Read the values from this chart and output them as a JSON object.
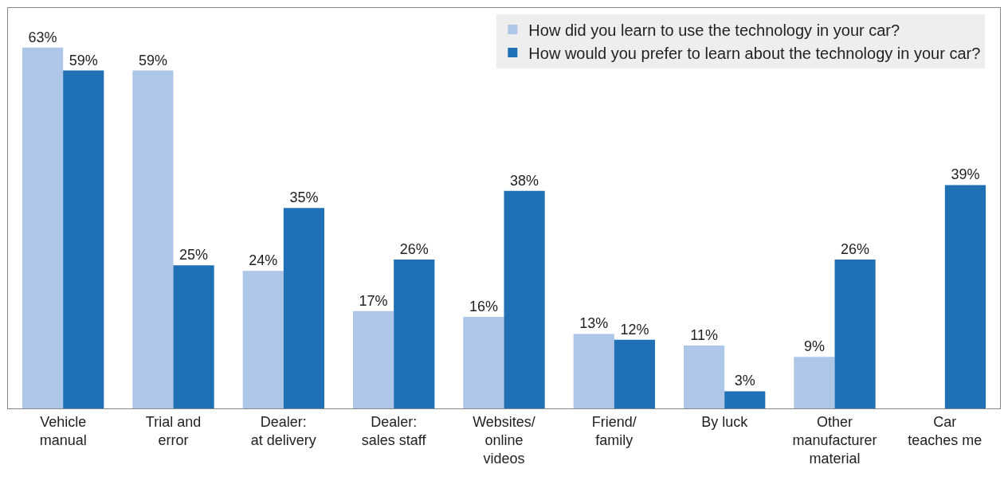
{
  "chart_data": {
    "type": "bar",
    "categories": [
      "Vehicle\nmanual",
      "Trial and\nerror",
      "Dealer:\nat delivery",
      "Dealer:\nsales staff",
      "Websites/\nonline\nvideos",
      "Friend/\nfamily",
      "By luck",
      "Other\nmanufacturer\nmaterial",
      "Car\nteaches me"
    ],
    "series": [
      {
        "name": "How did you learn to use the technology in your car?",
        "color": "#aec6e8",
        "values": [
          63,
          59,
          24,
          17,
          16,
          13,
          11,
          9,
          null
        ],
        "value_labels": [
          "63%",
          "59%",
          "24%",
          "17%",
          "16%",
          "13%",
          "11%",
          "9%",
          null
        ]
      },
      {
        "name": "How would you prefer to learn about the technology in your car?",
        "color": "#1f70b4",
        "values": [
          59,
          25,
          35,
          26,
          38,
          12,
          3,
          26,
          39
        ],
        "value_labels": [
          "59%",
          "25%",
          "35%",
          "26%",
          "38%",
          "12%",
          "3%",
          "26%",
          "39%"
        ]
      }
    ],
    "legend": "top right"
  }
}
